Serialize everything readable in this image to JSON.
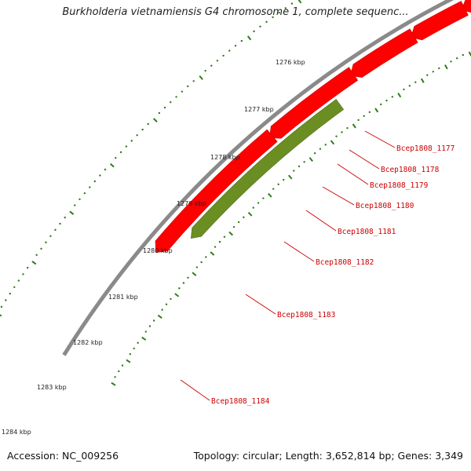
{
  "title": "Burkholderia vietnamiensis G4 chromosome 1, complete sequenc...",
  "footer": {
    "accession": "Accession: NC_009256",
    "summary": "Topology: circular; Length: 3,652,814 bp; Genes: 3,349"
  },
  "colors": {
    "backbone": "#8a8a8a",
    "gene_cds": "#ff0000",
    "gene_other": "#6b8e23",
    "tick": "#2e7d1a",
    "gene_label": "#cc0000"
  },
  "ruler": {
    "unit": "kbp",
    "labels": [
      "1276 kbp",
      "1277 kbp",
      "1278 kbp",
      "1279 kbp",
      "1280 kbp",
      "1281 kbp",
      "1282 kbp",
      "1283 kbp",
      "1284 kbp"
    ]
  },
  "genes": [
    {
      "locus_tag": "Bcep1808_1177",
      "type": "CDS"
    },
    {
      "locus_tag": "Bcep1808_1178",
      "type": "CDS"
    },
    {
      "locus_tag": "Bcep1808_1179",
      "type": "CDS"
    },
    {
      "locus_tag": "Bcep1808_1180",
      "type": "CDS"
    },
    {
      "locus_tag": "Bcep1808_1181",
      "type": "CDS"
    },
    {
      "locus_tag": "Bcep1808_1182",
      "type": "CDS"
    },
    {
      "locus_tag": "Bcep1808_1183",
      "type": "CDS"
    },
    {
      "locus_tag": "Bcep1808_1184",
      "type": "other"
    }
  ]
}
